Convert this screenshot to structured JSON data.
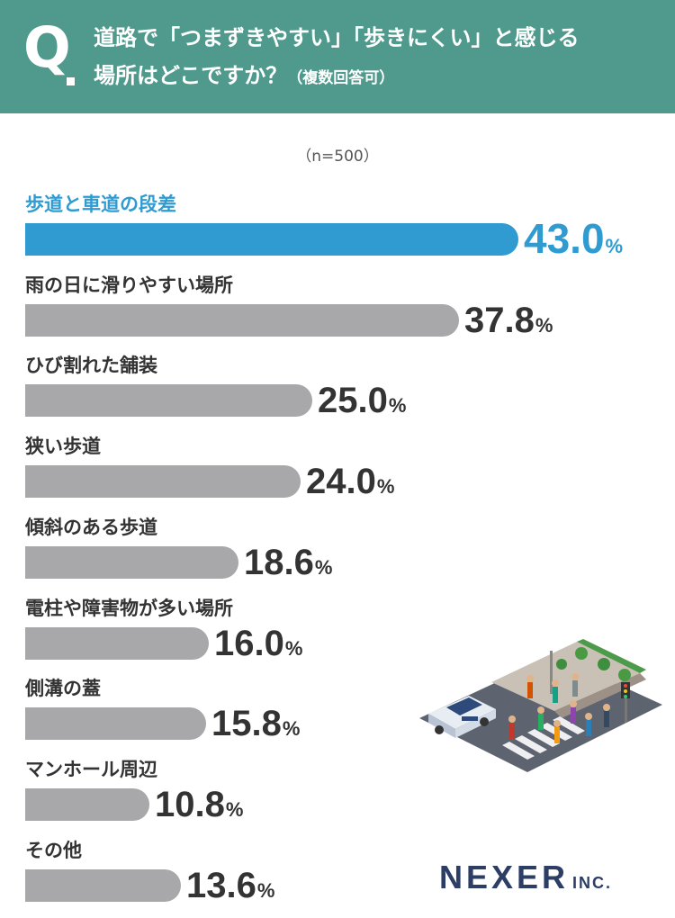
{
  "header": {
    "q_mark": "Q",
    "question_line1": "道路で「つまずきやすい」「歩きにくい」と感じる",
    "question_line2": "場所はどこですか？",
    "question_note": "（複数回答可）",
    "bg_color": "#4f9a8d"
  },
  "sample_size": "（n=500）",
  "brand": {
    "name": "NEXER",
    "suffix": "INC."
  },
  "colors": {
    "highlight": "#2f9bd1",
    "bar": "#a8a8ab",
    "text": "#333333"
  },
  "chart_data": {
    "type": "bar",
    "orientation": "horizontal",
    "unit": "%",
    "categories": [
      "歩道と車道の段差",
      "雨の日に滑りやすい場所",
      "ひび割れた舗装",
      "狭い歩道",
      "傾斜のある歩道",
      "電柱や障害物が多い場所",
      "側溝の蓋",
      "マンホール周辺",
      "その他"
    ],
    "values": [
      43.0,
      37.8,
      25.0,
      24.0,
      18.6,
      16.0,
      15.8,
      10.8,
      13.6
    ],
    "value_labels": [
      "43.0",
      "37.8",
      "25.0",
      "24.0",
      "18.6",
      "16.0",
      "15.8",
      "10.8",
      "13.6"
    ],
    "highlight_index": 0,
    "xlim": [
      0,
      43.0
    ]
  }
}
